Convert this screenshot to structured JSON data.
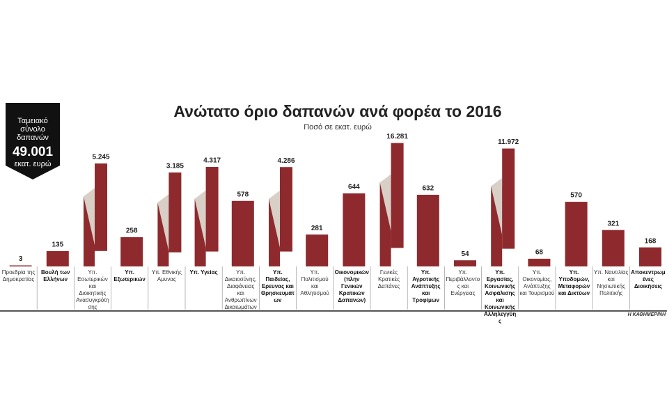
{
  "chart_data": {
    "type": "bar",
    "title": "Ανώτατο όριο δαπανών ανά φορέα το 2016",
    "subtitle": "Ποσό σε εκατ. ευρώ",
    "total": {
      "label": "Ταμειακό σύνολο δαπανών",
      "value": "49.001",
      "unit": "εκατ. ευρώ"
    },
    "source": "Η ΚΑΘΗΜΕΡΙΝΗ",
    "color": "#8e2a2d",
    "categories": [
      "Προεδρία της Δημοκρατίας",
      "Βουλή των Ελλήνων",
      "Υπ. Εσωτερικών και Διοικητικής Ανασυγκρότησης",
      "Υπ. Εξωτερικών",
      "Υπ. Εθνικής Αμυνας",
      "Υπ. Υγείας",
      "Υπ. Δικαιοσύνης, Διαφάνειας και Ανθρωπίνων Δικαιωμάτων",
      "Υπ. Παιδείας, Ερευνας και Θρησκευμάτων",
      "Υπ. Πολιτισμού και Αθλητισμού",
      "Οικονομικών (πλην Γενικών Κρατικών Δαπανών)",
      "Γενικές Κρατικές Δαπάνες",
      "Υπ. Αγροτικής Ανάπτυξης και Τροφίμων",
      "Υπ. Περιβάλλοντος και Ενέργειας",
      "Υπ. Εργασίας, Κοινωνικής Ασφάλισης και Κοινωνικής Αλληλεγγύης",
      "Υπ. Οικονομίας, Ανάπτυξης και Τουρισμού",
      "Υπ. Υποδομών, Μεταφορών και Δικτύων",
      "Υπ. Ναυτιλίας και Νησιωτικής Πολιτικής",
      "Αποκεντρωμένες Διοικήσεις"
    ],
    "values": [
      3,
      135,
      5245,
      258,
      3185,
      4317,
      578,
      4286,
      281,
      644,
      16281,
      632,
      54,
      11972,
      68,
      570,
      321,
      168
    ],
    "value_labels": [
      "3",
      "135",
      "5.245",
      "258",
      "3.185",
      "4.317",
      "578",
      "4.286",
      "281",
      "644",
      "16.281",
      "632",
      "54",
      "11.972",
      "68",
      "570",
      "321",
      "168"
    ],
    "bold": [
      false,
      true,
      false,
      true,
      false,
      true,
      false,
      true,
      false,
      true,
      false,
      true,
      false,
      true,
      false,
      true,
      false,
      true
    ]
  }
}
